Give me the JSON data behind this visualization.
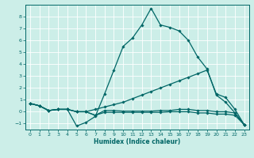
{
  "xlabel": "Humidex (Indice chaleur)",
  "bg_color": "#cceee8",
  "line_color": "#006666",
  "xlim": [
    -0.5,
    23.5
  ],
  "ylim": [
    -1.5,
    9.0
  ],
  "xticks": [
    0,
    1,
    2,
    3,
    4,
    5,
    6,
    7,
    8,
    9,
    10,
    11,
    12,
    13,
    14,
    15,
    16,
    17,
    18,
    19,
    20,
    21,
    22,
    23
  ],
  "yticks": [
    -1,
    0,
    1,
    2,
    3,
    4,
    5,
    6,
    7,
    8
  ],
  "lines": [
    {
      "x": [
        0,
        1,
        2,
        3,
        4,
        5,
        6,
        7,
        8,
        9,
        10,
        11,
        12,
        13,
        14,
        15,
        16,
        17,
        18,
        19,
        20,
        21,
        22,
        23
      ],
      "y": [
        0.7,
        0.5,
        0.1,
        0.2,
        0.2,
        -1.2,
        -0.9,
        -0.4,
        1.5,
        3.5,
        5.5,
        6.2,
        7.3,
        8.7,
        7.3,
        7.1,
        6.8,
        6.0,
        4.6,
        3.6,
        1.4,
        0.8,
        -0.1,
        -1.1
      ]
    },
    {
      "x": [
        0,
        1,
        2,
        3,
        4,
        5,
        6,
        7,
        8,
        9,
        10,
        11,
        12,
        13,
        14,
        15,
        16,
        17,
        18,
        19,
        20,
        21,
        22,
        23
      ],
      "y": [
        0.7,
        0.5,
        0.1,
        0.2,
        0.2,
        0.0,
        0.0,
        0.2,
        0.4,
        0.6,
        0.8,
        1.1,
        1.4,
        1.7,
        2.0,
        2.3,
        2.6,
        2.9,
        3.2,
        3.5,
        1.5,
        1.2,
        0.2,
        -1.1
      ]
    },
    {
      "x": [
        0,
        1,
        2,
        3,
        4,
        5,
        6,
        7,
        8,
        9,
        10,
        11,
        12,
        13,
        14,
        15,
        16,
        17,
        18,
        19,
        20,
        21,
        22,
        23
      ],
      "y": [
        0.7,
        0.5,
        0.1,
        0.2,
        0.2,
        0.0,
        0.0,
        -0.3,
        -0.05,
        -0.05,
        -0.05,
        -0.05,
        -0.05,
        -0.05,
        -0.05,
        0.0,
        0.0,
        0.0,
        -0.1,
        -0.1,
        -0.2,
        -0.2,
        -0.3,
        -1.1
      ]
    },
    {
      "x": [
        0,
        1,
        2,
        3,
        4,
        5,
        6,
        7,
        8,
        9,
        10,
        11,
        12,
        13,
        14,
        15,
        16,
        17,
        18,
        19,
        20,
        21,
        22,
        23
      ],
      "y": [
        0.7,
        0.5,
        0.1,
        0.2,
        0.2,
        0.0,
        0.0,
        -0.3,
        0.1,
        0.1,
        0.05,
        0.05,
        0.05,
        0.05,
        0.1,
        0.1,
        0.2,
        0.2,
        0.1,
        0.1,
        0.0,
        0.0,
        -0.1,
        -1.1
      ]
    }
  ]
}
